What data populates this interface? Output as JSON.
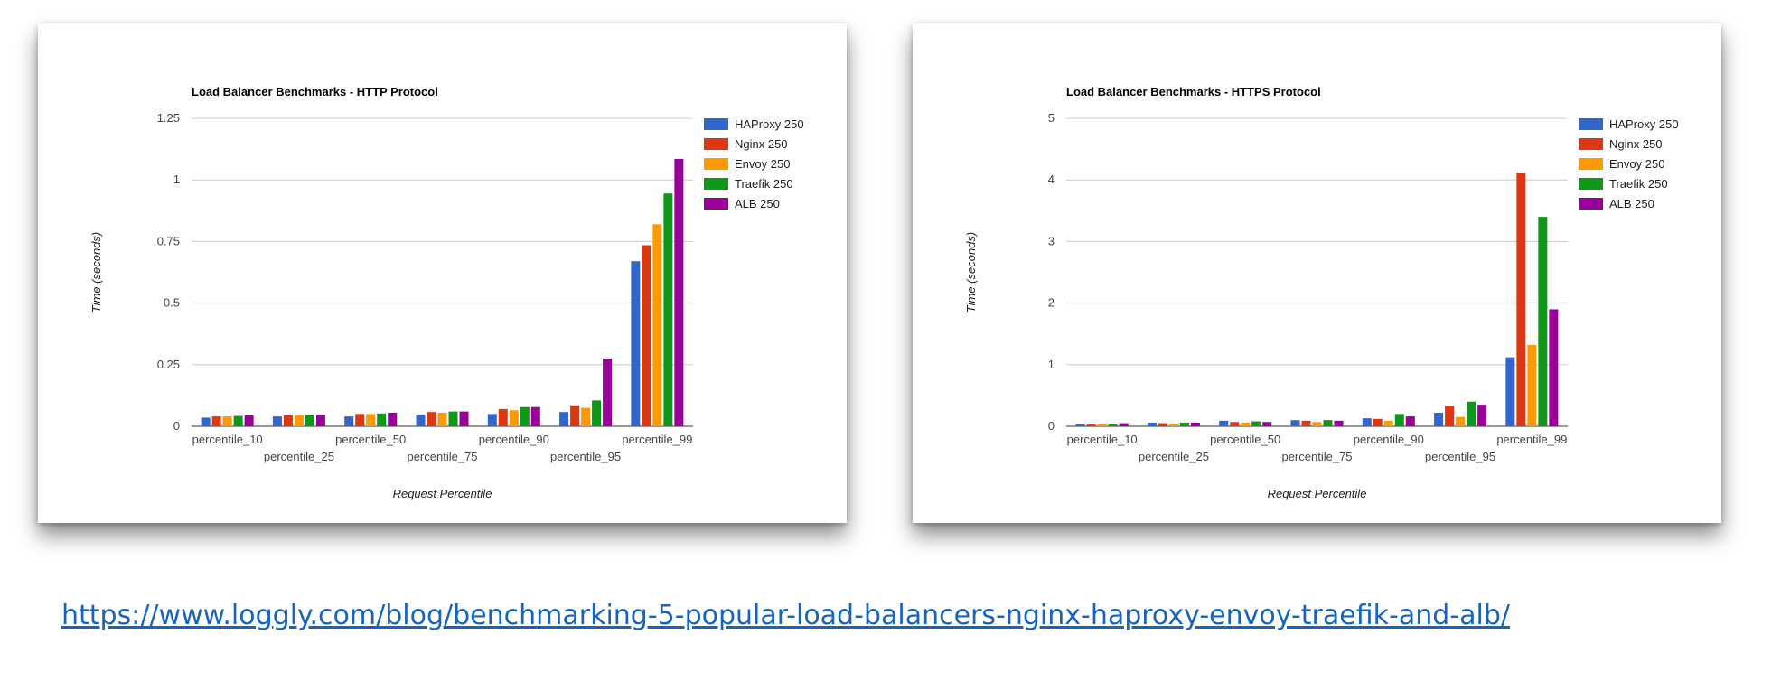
{
  "chart_data": [
    {
      "type": "bar",
      "title": "Load Balancer Benchmarks - HTTP Protocol",
      "xlabel": "Request Percentile",
      "ylabel": "Time (seconds)",
      "ylim": [
        0,
        1.25
      ],
      "yticks": [
        "0",
        "0.25",
        "0.5",
        "0.75",
        "1",
        "1.25"
      ],
      "grid": true,
      "legend_position": "right",
      "categories": [
        "percentile_10",
        "percentile_25",
        "percentile_50",
        "percentile_75",
        "percentile_90",
        "percentile_95",
        "percentile_99"
      ],
      "series": [
        {
          "name": "HAProxy 250",
          "color": "#3366cc",
          "values": [
            0.035,
            0.04,
            0.04,
            0.048,
            0.05,
            0.058,
            0.67
          ]
        },
        {
          "name": "Nginx 250",
          "color": "#dc3912",
          "values": [
            0.04,
            0.045,
            0.05,
            0.058,
            0.07,
            0.085,
            0.735
          ]
        },
        {
          "name": "Envoy 250",
          "color": "#ff9900",
          "values": [
            0.04,
            0.045,
            0.05,
            0.055,
            0.065,
            0.075,
            0.82
          ]
        },
        {
          "name": "Traefik 250",
          "color": "#109618",
          "values": [
            0.042,
            0.045,
            0.052,
            0.06,
            0.078,
            0.105,
            0.945
          ]
        },
        {
          "name": "ALB 250",
          "color": "#990099",
          "values": [
            0.045,
            0.048,
            0.055,
            0.06,
            0.078,
            0.275,
            1.085
          ]
        }
      ]
    },
    {
      "type": "bar",
      "title": "Load Balancer Benchmarks - HTTPS Protocol",
      "xlabel": "Request Percentile",
      "ylabel": "Time (seconds)",
      "ylim": [
        0,
        5
      ],
      "yticks": [
        "0",
        "1",
        "2",
        "3",
        "4",
        "5"
      ],
      "grid": true,
      "legend_position": "right",
      "categories": [
        "percentile_10",
        "percentile_25",
        "percentile_50",
        "percentile_75",
        "percentile_90",
        "percentile_95",
        "percentile_99"
      ],
      "series": [
        {
          "name": "HAProxy 250",
          "color": "#3366cc",
          "values": [
            0.04,
            0.06,
            0.09,
            0.1,
            0.13,
            0.22,
            1.12
          ]
        },
        {
          "name": "Nginx 250",
          "color": "#dc3912",
          "values": [
            0.03,
            0.05,
            0.07,
            0.09,
            0.12,
            0.33,
            4.12
          ]
        },
        {
          "name": "Envoy 250",
          "color": "#ff9900",
          "values": [
            0.04,
            0.04,
            0.06,
            0.07,
            0.09,
            0.15,
            1.32
          ]
        },
        {
          "name": "Traefik 250",
          "color": "#109618",
          "values": [
            0.03,
            0.06,
            0.08,
            0.1,
            0.2,
            0.4,
            3.4
          ]
        },
        {
          "name": "ALB 250",
          "color": "#990099",
          "values": [
            0.05,
            0.06,
            0.07,
            0.09,
            0.16,
            0.35,
            1.9
          ]
        }
      ]
    }
  ],
  "source_link": "https://www.loggly.com/blog/benchmarking-5-popular-load-balancers-nginx-haproxy-envoy-traefik-and-alb/"
}
